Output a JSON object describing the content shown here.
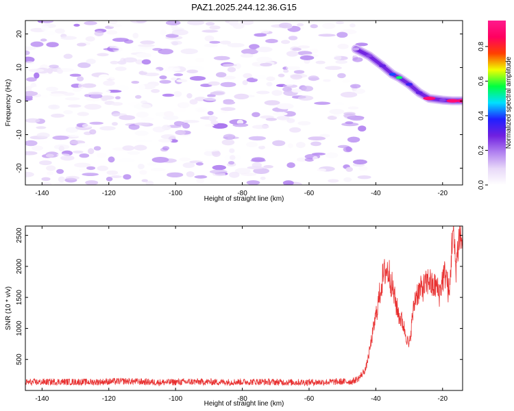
{
  "chart_data": [
    {
      "type": "heatmap",
      "title": "PAZ1.2025.244.12.36.G15",
      "xlabel": "Height of straight line (km)",
      "ylabel": "Frequency (Hz)",
      "xlim": [
        -145,
        -14
      ],
      "ylim": [
        -25,
        24
      ],
      "xticks": [
        "-140",
        "-120",
        "-100",
        "-80",
        "-60",
        "-40",
        "-20"
      ],
      "xtick_values": [
        -140,
        -120,
        -100,
        -80,
        -60,
        -40,
        -20
      ],
      "yticks": [
        "20",
        "10",
        "0",
        "-10",
        "-20"
      ],
      "ytick_values": [
        20,
        10,
        0,
        -10,
        -20
      ],
      "noise_region": {
        "x": [
          -145,
          -43
        ],
        "y": [
          -25,
          24
        ],
        "amplitude_range": [
          0.0,
          0.2
        ]
      },
      "signal_ridge": [
        {
          "x": -46,
          "y": 15.5,
          "amplitude": 0.15
        },
        {
          "x": -42,
          "y": 13.5,
          "amplitude": 0.25
        },
        {
          "x": -38,
          "y": 10.5,
          "amplitude": 0.3
        },
        {
          "x": -35,
          "y": 8,
          "amplitude": 0.4
        },
        {
          "x": -33,
          "y": 7,
          "amplitude": 0.55
        },
        {
          "x": -30,
          "y": 5,
          "amplitude": 0.35
        },
        {
          "x": -27,
          "y": 2.5,
          "amplitude": 0.3
        },
        {
          "x": -24,
          "y": 0.8,
          "amplitude": 0.9
        },
        {
          "x": -20,
          "y": 0.3,
          "amplitude": 0.25
        },
        {
          "x": -17,
          "y": 0.1,
          "amplitude": 0.9
        },
        {
          "x": -14,
          "y": 0.1,
          "amplitude": 0.9
        }
      ],
      "colorbar": {
        "label": "Normalized spectral amplitude",
        "range": [
          0,
          0.95
        ],
        "ticks": [
          "0.0",
          "0.2",
          "0.4",
          "0.6",
          "0.8"
        ],
        "tick_values": [
          0.0,
          0.2,
          0.4,
          0.6,
          0.8
        ],
        "colors": [
          "#ffffff",
          "#e8d8f8",
          "#b080f0",
          "#7020e0",
          "#2020ff",
          "#00e0ff",
          "#00ff40",
          "#f0ff00",
          "#ff4000",
          "#ff0060",
          "#ff1a8c"
        ]
      }
    },
    {
      "type": "line",
      "xlabel": "Height of straight line (km)",
      "ylabel": "SNR (10 * v/v)",
      "xlim": [
        -145,
        -14
      ],
      "ylim": [
        0,
        2650
      ],
      "xticks": [
        "-140",
        "-120",
        "-100",
        "-80",
        "-60",
        "-40",
        "-20"
      ],
      "xtick_values": [
        -140,
        -120,
        -100,
        -80,
        -60,
        -40,
        -20
      ],
      "yticks": [
        "500",
        "1000",
        "1500",
        "2000",
        "2500"
      ],
      "ytick_values": [
        500,
        1000,
        1500,
        2000,
        2500
      ],
      "color": "#e83030",
      "series": [
        {
          "name": "SNR",
          "x": [
            -145,
            -135,
            -125,
            -115,
            -105,
            -95,
            -85,
            -75,
            -65,
            -55,
            -47,
            -45,
            -43,
            -42,
            -41,
            -40,
            -39,
            -38,
            -37,
            -36,
            -35,
            -34,
            -33,
            -32,
            -31,
            -30,
            -29,
            -28,
            -27,
            -26,
            -25,
            -24,
            -23,
            -22,
            -21,
            -20,
            -19,
            -18,
            -17,
            -16,
            -15,
            -14
          ],
          "y": [
            130,
            140,
            135,
            150,
            130,
            140,
            135,
            140,
            130,
            135,
            145,
            200,
            350,
            600,
            900,
            1200,
            1500,
            1800,
            1950,
            1900,
            1650,
            1400,
            1200,
            1100,
            900,
            700,
            1200,
            1550,
            1600,
            1650,
            1700,
            1800,
            1650,
            1700,
            1550,
            1800,
            1900,
            1500,
            2600,
            2000,
            2500,
            2400
          ]
        }
      ]
    }
  ]
}
